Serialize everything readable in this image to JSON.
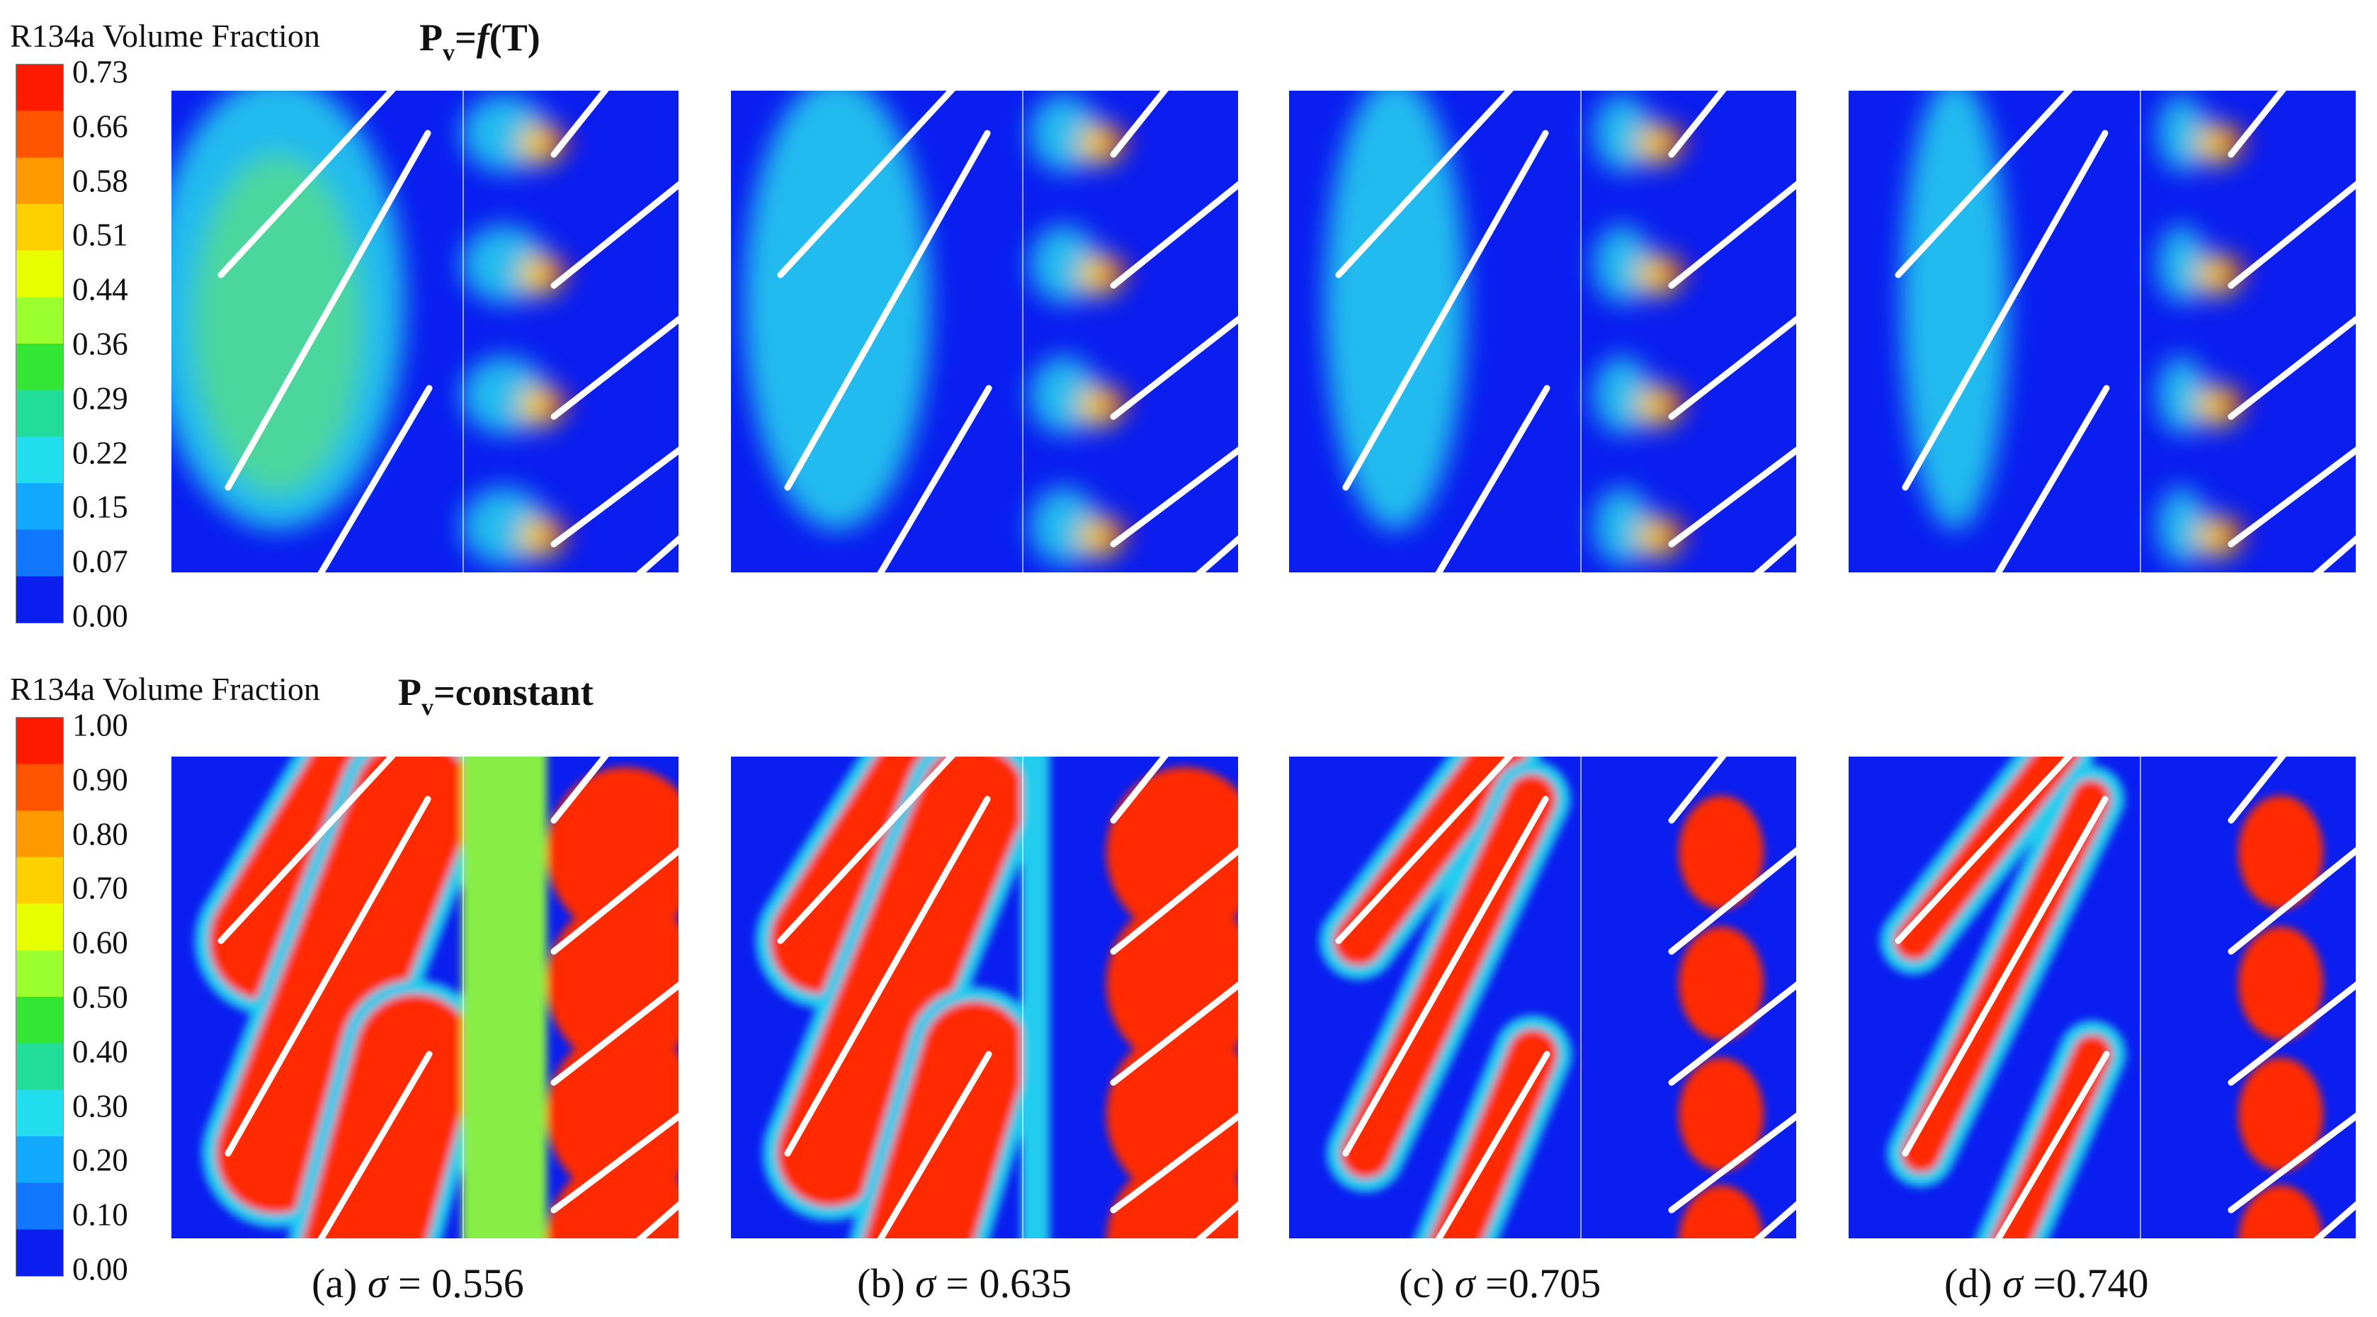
{
  "rows": [
    {
      "legend_title": "R134a Volume Fraction",
      "label_main": "P",
      "label_sub": "v",
      "label_eq": "=",
      "label_func": "f",
      "label_rest": "(T)",
      "ticks": [
        "0.73",
        "0.66",
        "0.58",
        "0.51",
        "0.44",
        "0.36",
        "0.29",
        "0.22",
        "0.15",
        "0.07",
        "0.00"
      ]
    },
    {
      "legend_title": "R134a Volume Fraction",
      "label_main": "P",
      "label_sub": "v",
      "label_eq": "=constant",
      "label_func": "",
      "label_rest": "",
      "ticks": [
        "1.00",
        "0.90",
        "0.80",
        "0.70",
        "0.60",
        "0.50",
        "0.40",
        "0.30",
        "0.20",
        "0.10",
        "0.00"
      ]
    }
  ],
  "captions": [
    {
      "prefix": "(a) ",
      "sigma": "σ",
      "value": " = 0.556"
    },
    {
      "prefix": "(b) ",
      "sigma": "σ",
      "value": " = 0.635"
    },
    {
      "prefix": "(c) ",
      "sigma": "σ",
      "value": " =0.705"
    },
    {
      "prefix": "(d) ",
      "sigma": "σ",
      "value": " =0.740"
    }
  ],
  "colors": {
    "background_blue": "#0a1ef0",
    "cavity_red": "#ff2a00",
    "blade_white": "#ffffff",
    "colormap": [
      "#ff1a00",
      "#ff5500",
      "#ff9900",
      "#ffd000",
      "#e8ff00",
      "#9cff2e",
      "#33e633",
      "#22dd99",
      "#22ddee",
      "#11aaff",
      "#1177ff",
      "#0a1ef0"
    ]
  }
}
